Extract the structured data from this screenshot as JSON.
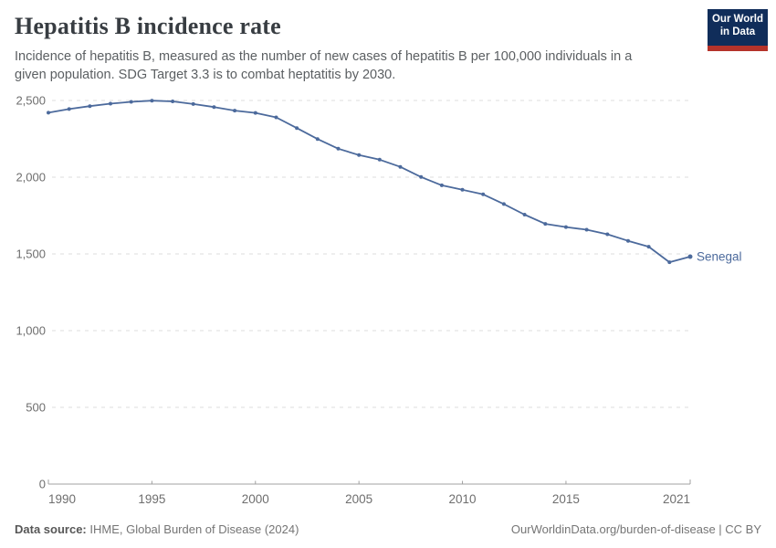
{
  "header": {
    "title": "Hepatitis B incidence rate",
    "subtitle": "Incidence of hepatitis B, measured as the number of new cases of hepatitis B per 100,000 individuals in a given population. SDG Target 3.3 is to combat heptatitis by 2030."
  },
  "logo": {
    "line1": "Our World",
    "line2": "in Data",
    "bg_color": "#102d5a",
    "bar_color": "#b5332a"
  },
  "footer": {
    "source_label": "Data source:",
    "source_text": " IHME, Global Burden of Disease (2024)",
    "attribution": "OurWorldinData.org/burden-of-disease | CC BY"
  },
  "chart_data": {
    "type": "line",
    "title": "Hepatitis B incidence rate",
    "x": [
      1990,
      1991,
      1992,
      1993,
      1994,
      1995,
      1996,
      1997,
      1998,
      1999,
      2000,
      2001,
      2002,
      2003,
      2004,
      2005,
      2006,
      2007,
      2008,
      2009,
      2010,
      2011,
      2012,
      2013,
      2014,
      2015,
      2016,
      2017,
      2018,
      2019,
      2020,
      2021
    ],
    "series": [
      {
        "name": "Senegal",
        "color": "#4c6a9c",
        "values": [
          2420,
          2444,
          2463,
          2479,
          2491,
          2499,
          2494,
          2477,
          2457,
          2434,
          2419,
          2390,
          2320,
          2249,
          2186,
          2144,
          2114,
          2067,
          2001,
          1947,
          1918,
          1888,
          1825,
          1756,
          1696,
          1675,
          1658,
          1628,
          1585,
          1547,
          1446,
          1482
        ]
      }
    ],
    "xlabel": "",
    "ylabel": "",
    "xlim": [
      1990,
      2021
    ],
    "ylim": [
      0,
      2500
    ],
    "xticks": [
      1990,
      1995,
      2000,
      2005,
      2010,
      2015,
      2021
    ],
    "yticks": [
      0,
      500,
      1000,
      1500,
      2000,
      2500
    ],
    "ytick_labels": [
      "0",
      "500",
      "1,000",
      "1,500",
      "2,000",
      "2,500"
    ],
    "grid": "horizontal-dashed",
    "legend_position": "line-end-label",
    "colors": {
      "gridline": "#dcdcdc",
      "axis": "#a0a0a0",
      "tick_label": "#6e6e6e"
    }
  }
}
